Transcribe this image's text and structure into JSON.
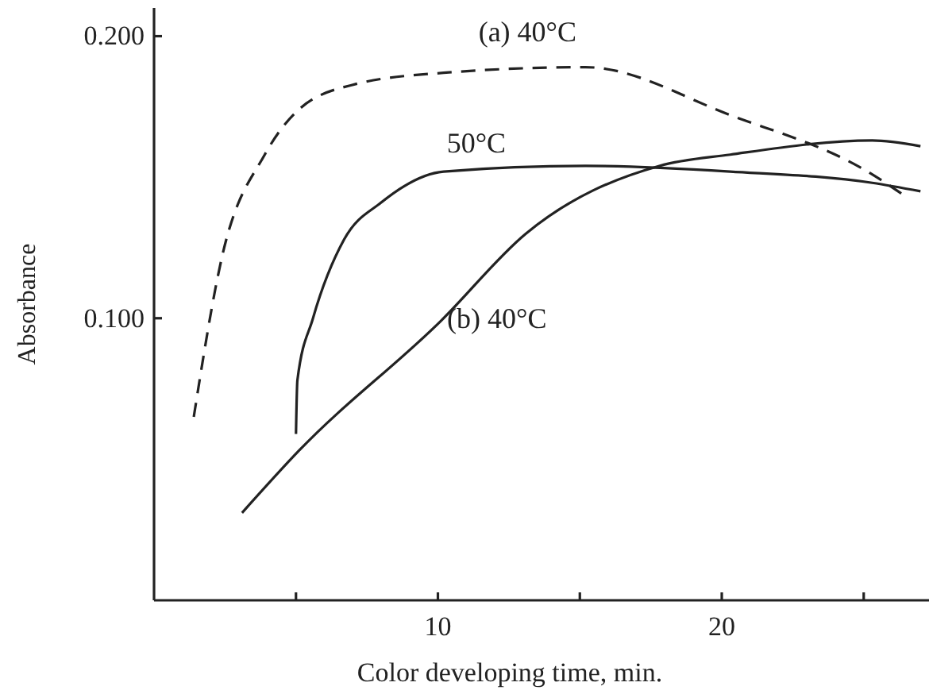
{
  "chart_data": {
    "type": "line",
    "xlabel": "Color developing time, min.",
    "ylabel": "Absorbance",
    "xlim": [
      0,
      27.3
    ],
    "ylim": [
      0,
      0.21
    ],
    "xticks": [
      {
        "value": 5,
        "label": null
      },
      10,
      {
        "value": 15,
        "label": null
      },
      20,
      {
        "value": 25,
        "label": null
      }
    ],
    "yticks": [
      {
        "value": 0.1,
        "label": "0.100"
      },
      {
        "value": 0.2,
        "label": "0.200"
      }
    ],
    "grid": false,
    "series": [
      {
        "name": "(a)  40°C",
        "color": "#222222",
        "line_style": "dashed",
        "x": [
          1.4,
          2.4,
          3.9,
          5.1,
          7.1,
          10.2,
          15.2,
          20.3,
          25.3,
          26.5
        ],
        "values": [
          0.065,
          0.122,
          0.158,
          0.174,
          0.183,
          0.187,
          0.189,
          0.172,
          0.151,
          0.143
        ]
      },
      {
        "name": "50°C",
        "color": "#222222",
        "line_style": "solid",
        "x": [
          5.0,
          5.05,
          5.6,
          6.7,
          8.0,
          10.2,
          15.2,
          20.3,
          25.3,
          27.0
        ],
        "values": [
          0.059,
          0.078,
          0.1,
          0.128,
          0.141,
          0.152,
          0.154,
          0.152,
          0.148,
          0.145
        ]
      },
      {
        "name": "(b)  40°C",
        "color": "#222222",
        "line_style": "solid",
        "x": [
          3.1,
          5.1,
          10.1,
          13.1,
          17.8,
          20.3,
          25.3,
          27.0
        ],
        "values": [
          0.031,
          0.053,
          0.099,
          0.13,
          0.154,
          0.158,
          0.163,
          0.161
        ]
      }
    ]
  }
}
